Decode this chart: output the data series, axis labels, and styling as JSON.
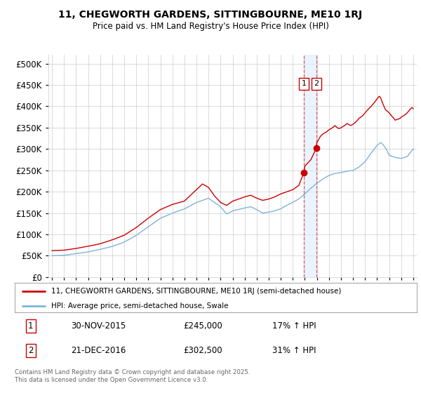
{
  "title": "11, CHEGWORTH GARDENS, SITTINGBOURNE, ME10 1RJ",
  "subtitle": "Price paid vs. HM Land Registry's House Price Index (HPI)",
  "legend_line1": "11, CHEGWORTH GARDENS, SITTINGBOURNE, ME10 1RJ (semi-detached house)",
  "legend_line2": "HPI: Average price, semi-detached house, Swale",
  "transaction1_label": "1",
  "transaction1_date": "30-NOV-2015",
  "transaction1_price": "£245,000",
  "transaction1_hpi": "17% ↑ HPI",
  "transaction2_label": "2",
  "transaction2_date": "21-DEC-2016",
  "transaction2_price": "£302,500",
  "transaction2_hpi": "31% ↑ HPI",
  "footer": "Contains HM Land Registry data © Crown copyright and database right 2025.\nThis data is licensed under the Open Government Licence v3.0.",
  "property_color": "#cc0000",
  "hpi_color": "#7eb3d8",
  "vline_color": "#e06060",
  "shade_color": "#ddeeff",
  "ylim": [
    0,
    520000
  ],
  "yticks": [
    0,
    50000,
    100000,
    150000,
    200000,
    250000,
    300000,
    350000,
    400000,
    450000,
    500000
  ],
  "sale1_x": 2015.92,
  "sale1_y": 245000,
  "sale2_x": 2016.97,
  "sale2_y": 302500,
  "vline1_x": 2015.92,
  "vline2_x": 2016.97,
  "shade_x1": 2015.92,
  "shade_x2": 2016.97,
  "xlim_left": 1994.7,
  "xlim_right": 2025.3
}
